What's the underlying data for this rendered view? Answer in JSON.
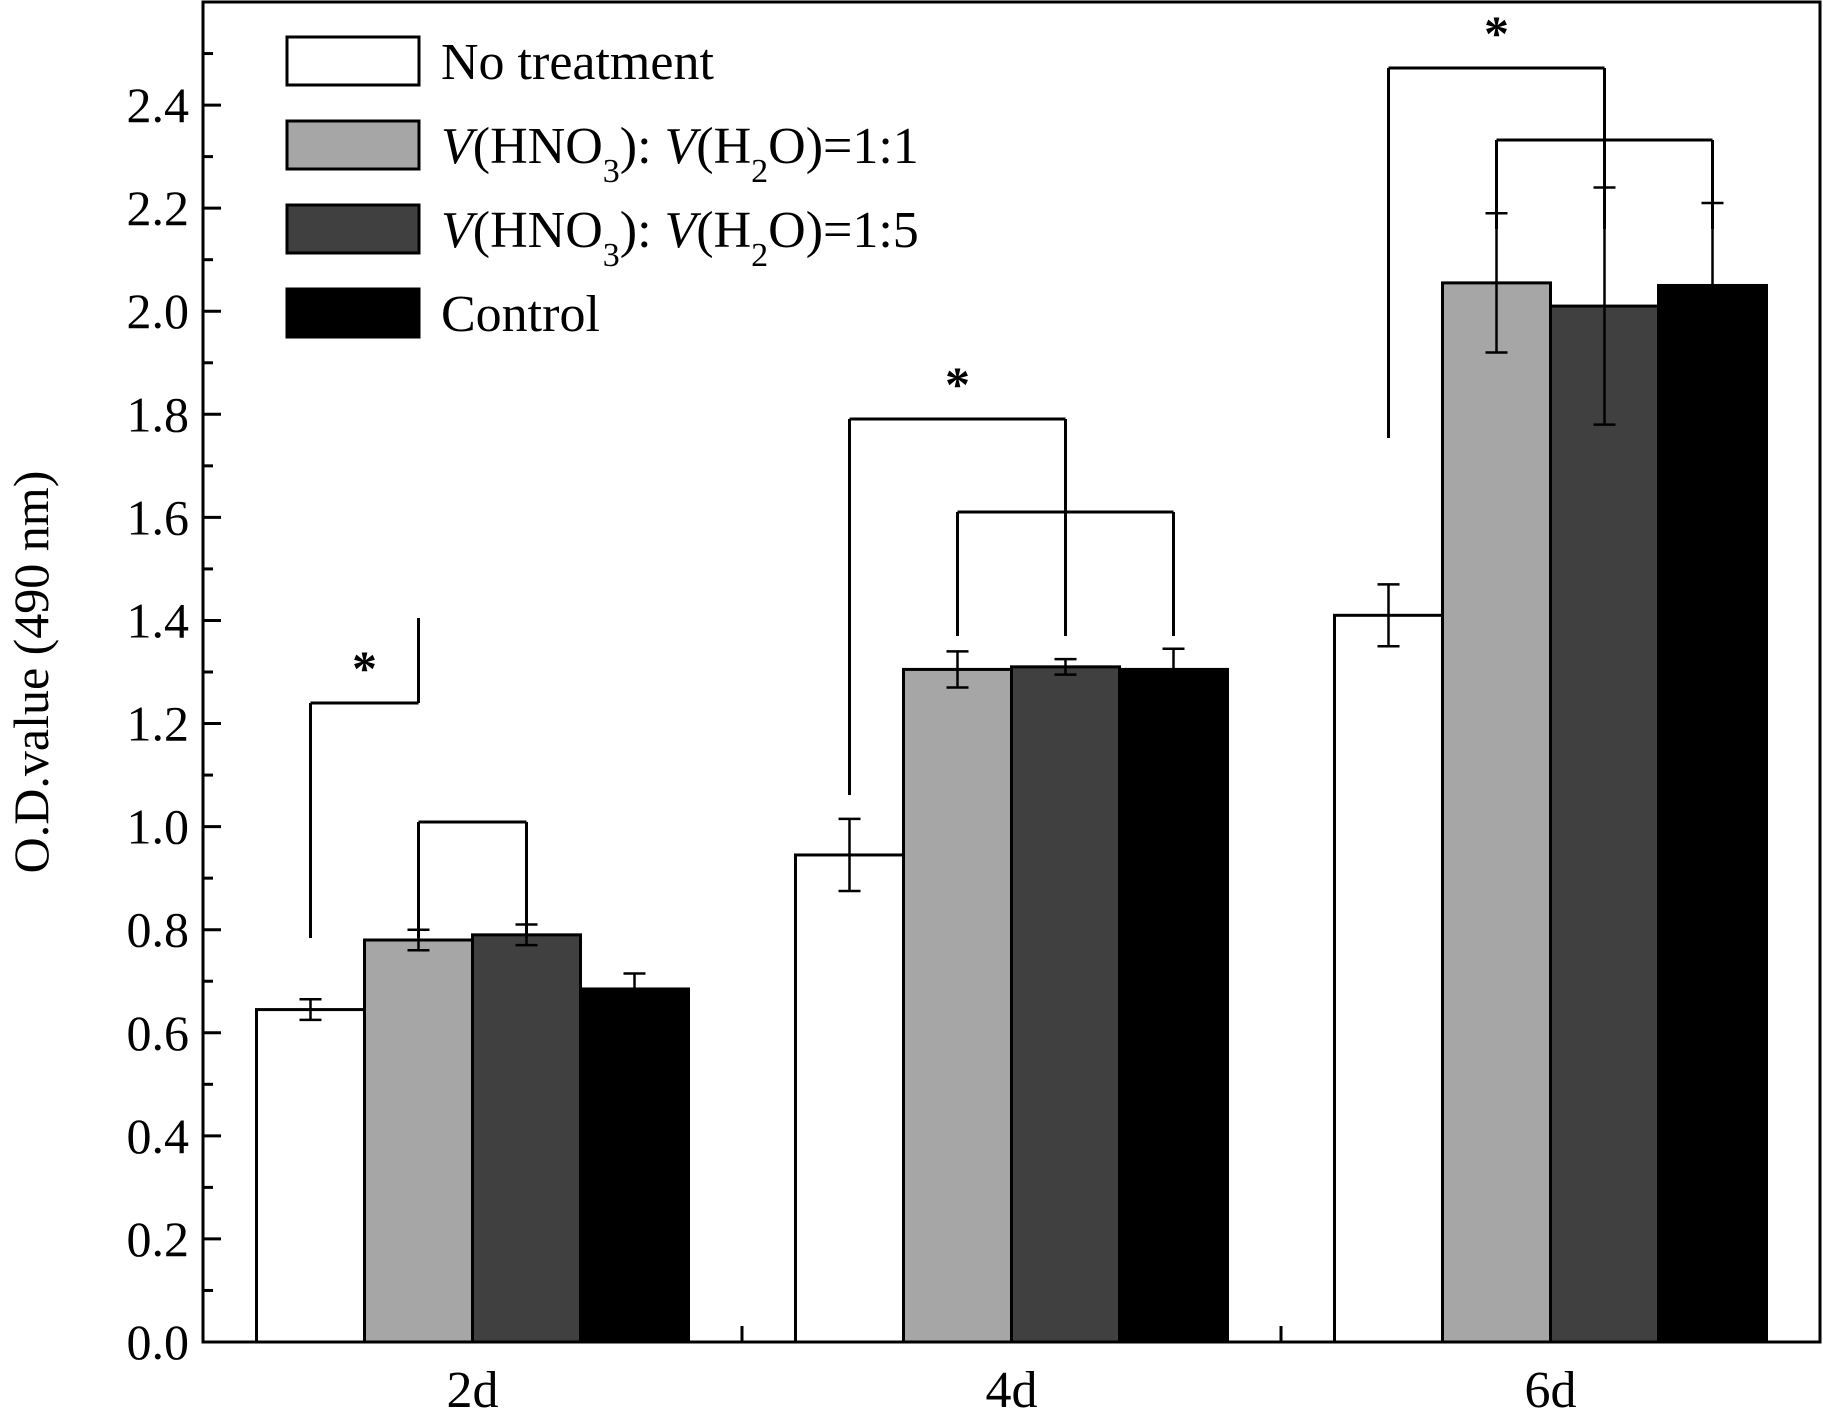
{
  "chart_data": {
    "type": "bar",
    "categories": [
      "2d",
      "4d",
      "6d"
    ],
    "ylabel": "O.D.value (490 nm)",
    "ylim": [
      0,
      2.6
    ],
    "yticks": [
      "0.0",
      "0.2",
      "0.4",
      "0.6",
      "0.8",
      "1.0",
      "1.2",
      "1.4",
      "1.6",
      "1.8",
      "2.0",
      "2.2",
      "2.4"
    ],
    "grid": false,
    "legend_position": "top-left",
    "series": [
      {
        "name": "No treatment",
        "color": "#ffffff",
        "values": [
          0.645,
          0.945,
          1.41
        ],
        "errors": [
          0.02,
          0.07,
          0.06
        ]
      },
      {
        "name": "V(HNO3): V(H2O)=1:1",
        "color": "#a6a6a6",
        "values": [
          0.78,
          1.305,
          2.055
        ],
        "errors": [
          0.02,
          0.035,
          0.135
        ]
      },
      {
        "name": "V(HNO3): V(H2O)=1:5",
        "color": "#404040",
        "values": [
          0.79,
          1.31,
          2.01
        ],
        "errors": [
          0.02,
          0.015,
          0.23
        ]
      },
      {
        "name": "Control",
        "color": "#000000",
        "values": [
          0.685,
          1.305,
          2.05
        ],
        "errors": [
          0.03,
          0.04,
          0.16
        ]
      }
    ],
    "significance_marker": "*"
  }
}
